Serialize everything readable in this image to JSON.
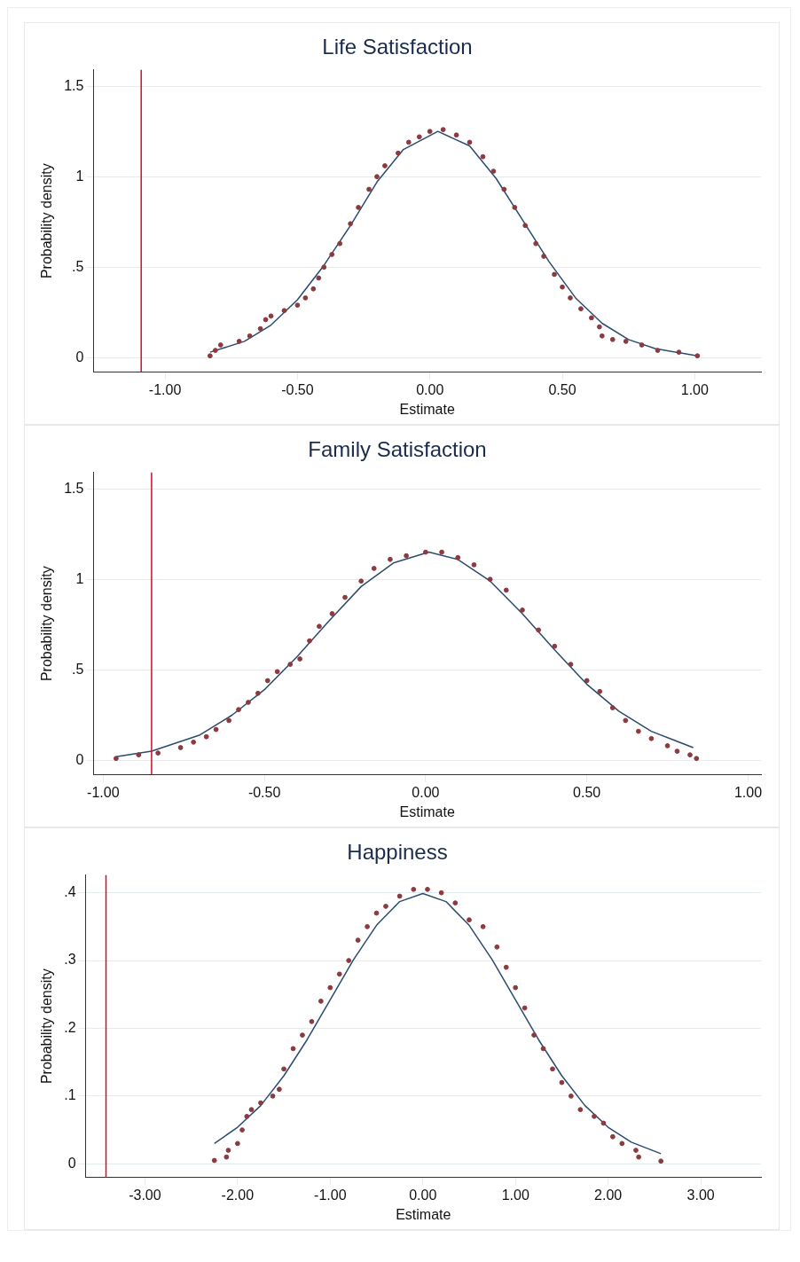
{
  "chart_data": [
    {
      "type": "scatter",
      "title": "Life Satisfaction",
      "xlabel": "Estimate",
      "ylabel": "Probability density",
      "xlim": [
        -1.27,
        1.25
      ],
      "ylim": [
        -0.08,
        1.59
      ],
      "xticks": [
        {
          "value": -1,
          "label": "-1.00"
        },
        {
          "value": -0.5,
          "label": "-0.50"
        },
        {
          "value": 0,
          "label": "0.00"
        },
        {
          "value": 0.5,
          "label": "0.50"
        },
        {
          "value": 1,
          "label": "1.00"
        }
      ],
      "yticks": [
        0,
        {
          "value": 0.5,
          "label": ".5"
        },
        1,
        1.5
      ],
      "grid": "y",
      "legend": false,
      "ref_lines": [
        {
          "axis": "x",
          "value": -1.09,
          "color": "#c8102e"
        }
      ],
      "series": [
        {
          "marker": "circle",
          "color": "#8b3a3f",
          "x": [
            -0.83,
            -0.81,
            -0.79,
            -0.72,
            -0.68,
            -0.64,
            -0.62,
            -0.6,
            -0.55,
            -0.5,
            -0.47,
            -0.44,
            -0.42,
            -0.4,
            -0.37,
            -0.34,
            -0.3,
            -0.27,
            -0.23,
            -0.2,
            -0.17,
            -0.12,
            -0.08,
            -0.04,
            0,
            0.05,
            0.1,
            0.15,
            0.2,
            0.24,
            0.28,
            0.32,
            0.36,
            0.4,
            0.43,
            0.47,
            0.5,
            0.53,
            0.57,
            0.61,
            0.64,
            0.65,
            0.69,
            0.74,
            0.8,
            0.86,
            0.94,
            1.01
          ],
          "values": [
            0.01,
            0.04,
            0.07,
            0.09,
            0.12,
            0.16,
            0.21,
            0.23,
            0.26,
            0.29,
            0.33,
            0.38,
            0.44,
            0.5,
            0.57,
            0.63,
            0.74,
            0.83,
            0.93,
            1.0,
            1.06,
            1.13,
            1.19,
            1.22,
            1.25,
            1.26,
            1.23,
            1.19,
            1.11,
            1.03,
            0.93,
            0.83,
            0.73,
            0.63,
            0.56,
            0.46,
            0.39,
            0.33,
            0.27,
            0.22,
            0.17,
            0.12,
            0.1,
            0.09,
            0.07,
            0.04,
            0.03,
            0.01
          ]
        },
        {
          "type": "line",
          "marker": "none",
          "color": "#2b4c6f",
          "x": [
            -0.83,
            -0.7,
            -0.6,
            -0.5,
            -0.4,
            -0.3,
            -0.2,
            -0.1,
            0.03,
            0.15,
            0.25,
            0.35,
            0.45,
            0.55,
            0.65,
            0.75,
            0.85,
            1.01
          ],
          "values": [
            0.03,
            0.09,
            0.18,
            0.32,
            0.51,
            0.73,
            0.97,
            1.15,
            1.25,
            1.17,
            0.99,
            0.76,
            0.53,
            0.33,
            0.19,
            0.1,
            0.05,
            0.01
          ]
        }
      ]
    },
    {
      "type": "scatter",
      "title": "Family Satisfaction",
      "xlabel": "Estimate",
      "ylabel": "Probability density",
      "xlim": [
        -1.03,
        1.04
      ],
      "ylim": [
        -0.08,
        1.59
      ],
      "xticks": [
        {
          "value": -1,
          "label": "-1.00"
        },
        {
          "value": -0.5,
          "label": "-0.50"
        },
        {
          "value": 0,
          "label": "0.00"
        },
        {
          "value": 0.5,
          "label": "0.50"
        },
        {
          "value": 1,
          "label": "1.00"
        }
      ],
      "yticks": [
        0,
        {
          "value": 0.5,
          "label": ".5"
        },
        1,
        1.5
      ],
      "grid": "y",
      "legend": false,
      "ref_lines": [
        {
          "axis": "x",
          "value": -0.85,
          "color": "#c8102e"
        }
      ],
      "series": [
        {
          "marker": "circle",
          "color": "#8b3a3f",
          "x": [
            -0.96,
            -0.89,
            -0.83,
            -0.76,
            -0.72,
            -0.68,
            -0.65,
            -0.61,
            -0.58,
            -0.55,
            -0.52,
            -0.49,
            -0.46,
            -0.42,
            -0.39,
            -0.36,
            -0.33,
            -0.29,
            -0.25,
            -0.2,
            -0.16,
            -0.11,
            -0.06,
            0,
            0.05,
            0.1,
            0.15,
            0.2,
            0.25,
            0.3,
            0.35,
            0.4,
            0.45,
            0.5,
            0.54,
            0.58,
            0.62,
            0.66,
            0.7,
            0.75,
            0.78,
            0.82,
            0.84
          ],
          "values": [
            0.01,
            0.03,
            0.04,
            0.07,
            0.1,
            0.13,
            0.17,
            0.22,
            0.28,
            0.32,
            0.37,
            0.44,
            0.49,
            0.53,
            0.56,
            0.66,
            0.74,
            0.81,
            0.9,
            0.99,
            1.06,
            1.11,
            1.13,
            1.15,
            1.15,
            1.12,
            1.08,
            1.0,
            0.94,
            0.83,
            0.72,
            0.63,
            0.53,
            0.44,
            0.38,
            0.29,
            0.22,
            0.16,
            0.12,
            0.08,
            0.05,
            0.03,
            0.01
          ]
        },
        {
          "type": "line",
          "marker": "none",
          "color": "#2b4c6f",
          "x": [
            -0.96,
            -0.85,
            -0.7,
            -0.6,
            -0.5,
            -0.4,
            -0.3,
            -0.2,
            -0.1,
            0.01,
            0.1,
            0.2,
            0.3,
            0.4,
            0.5,
            0.6,
            0.7,
            0.83
          ],
          "values": [
            0.02,
            0.05,
            0.14,
            0.25,
            0.39,
            0.57,
            0.77,
            0.96,
            1.09,
            1.15,
            1.11,
            0.99,
            0.81,
            0.61,
            0.42,
            0.27,
            0.16,
            0.07
          ]
        }
      ]
    },
    {
      "type": "scatter",
      "title": "Happiness",
      "xlabel": "Estimate",
      "ylabel": "Probability density",
      "xlim": [
        -3.64,
        3.65
      ],
      "ylim": [
        -0.02,
        0.426
      ],
      "xticks": [
        {
          "value": -3,
          "label": "-3.00"
        },
        {
          "value": -2,
          "label": "-2.00"
        },
        {
          "value": -1,
          "label": "-1.00"
        },
        {
          "value": 0,
          "label": "0.00"
        },
        {
          "value": 1,
          "label": "1.00"
        },
        {
          "value": 2,
          "label": "2.00"
        },
        {
          "value": 3,
          "label": "3.00"
        }
      ],
      "yticks": [
        0,
        {
          "value": 0.1,
          "label": ".1"
        },
        {
          "value": 0.2,
          "label": ".2"
        },
        {
          "value": 0.3,
          "label": ".3"
        },
        {
          "value": 0.4,
          "label": ".4"
        }
      ],
      "grid": "y",
      "legend": false,
      "ref_lines": [
        {
          "axis": "x",
          "value": -3.42,
          "color": "#c8102e"
        }
      ],
      "series": [
        {
          "marker": "circle",
          "color": "#8b3a3f",
          "x": [
            -2.25,
            -2.12,
            -2.1,
            -2.0,
            -1.95,
            -1.9,
            -1.85,
            -1.75,
            -1.62,
            -1.55,
            -1.5,
            -1.4,
            -1.3,
            -1.2,
            -1.1,
            -1.0,
            -0.9,
            -0.8,
            -0.7,
            -0.6,
            -0.5,
            -0.4,
            -0.25,
            -0.1,
            0.05,
            0.2,
            0.35,
            0.5,
            0.65,
            0.8,
            0.9,
            1.0,
            1.1,
            1.2,
            1.3,
            1.4,
            1.5,
            1.6,
            1.7,
            1.85,
            1.95,
            2.05,
            2.15,
            2.3,
            2.33,
            2.57
          ],
          "values": [
            0.005,
            0.01,
            0.02,
            0.03,
            0.05,
            0.07,
            0.08,
            0.09,
            0.1,
            0.11,
            0.14,
            0.17,
            0.19,
            0.21,
            0.24,
            0.26,
            0.28,
            0.3,
            0.33,
            0.35,
            0.37,
            0.38,
            0.395,
            0.405,
            0.405,
            0.4,
            0.385,
            0.36,
            0.35,
            0.32,
            0.29,
            0.26,
            0.23,
            0.19,
            0.17,
            0.14,
            0.12,
            0.1,
            0.08,
            0.07,
            0.06,
            0.04,
            0.03,
            0.02,
            0.01,
            0.004
          ]
        },
        {
          "type": "line",
          "marker": "none",
          "color": "#2b4c6f",
          "x": [
            -2.25,
            -2,
            -1.75,
            -1.5,
            -1.25,
            -1,
            -0.75,
            -0.5,
            -0.25,
            0,
            0.25,
            0.5,
            0.75,
            1,
            1.25,
            1.5,
            1.75,
            2,
            2.25,
            2.57
          ],
          "values": [
            0.03,
            0.054,
            0.086,
            0.13,
            0.183,
            0.242,
            0.301,
            0.352,
            0.387,
            0.399,
            0.387,
            0.352,
            0.301,
            0.242,
            0.183,
            0.13,
            0.086,
            0.054,
            0.032,
            0.015
          ]
        }
      ]
    }
  ]
}
